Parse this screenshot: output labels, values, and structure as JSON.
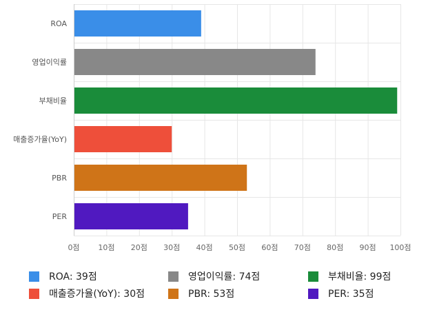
{
  "chart_data": {
    "type": "bar",
    "orientation": "horizontal",
    "categories": [
      "ROA",
      "영업이익률",
      "부채비율",
      "매출증가율(YoY)",
      "PBR",
      "PER"
    ],
    "values": [
      39,
      74,
      99,
      30,
      53,
      35
    ],
    "colors": [
      "#3a8ee8",
      "#888888",
      "#1a8c3a",
      "#ee4f3a",
      "#cf7418",
      "#5019c0"
    ],
    "xlim": [
      0,
      100
    ],
    "x_ticks": [
      0,
      10,
      20,
      30,
      40,
      50,
      60,
      70,
      80,
      90,
      100
    ],
    "x_tick_labels": [
      "0점",
      "10점",
      "20점",
      "30점",
      "40점",
      "50점",
      "60점",
      "70점",
      "80점",
      "90점",
      "100점"
    ],
    "grid": true,
    "legend_position": "bottom"
  },
  "legend": [
    {
      "label": "ROA: 39점",
      "color": "#3a8ee8"
    },
    {
      "label": "영업이익률: 74점",
      "color": "#888888"
    },
    {
      "label": "부채비율: 99점",
      "color": "#1a8c3a"
    },
    {
      "label": "매출증가율(YoY): 30점",
      "color": "#ee4f3a"
    },
    {
      "label": "PBR: 53점",
      "color": "#cf7418"
    },
    {
      "label": "PER: 35점",
      "color": "#5019c0"
    }
  ]
}
